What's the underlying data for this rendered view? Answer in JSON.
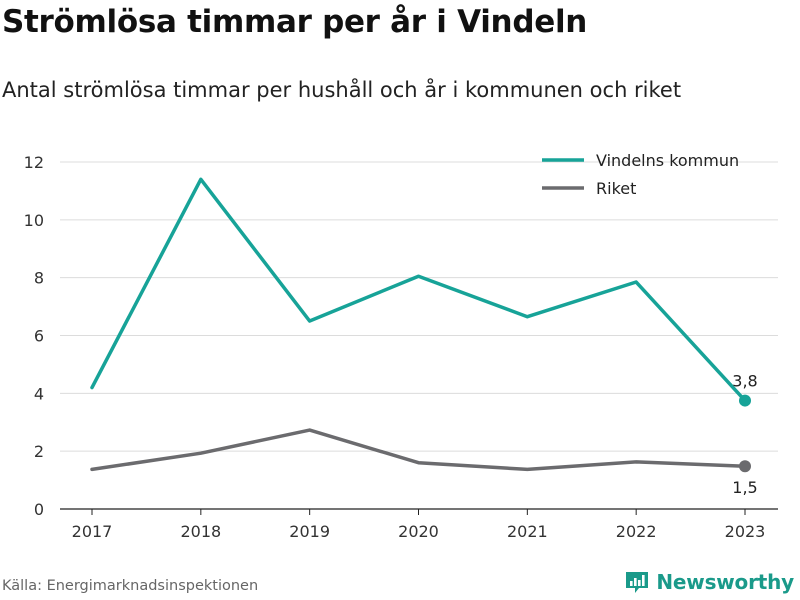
{
  "title": "Strömlösa timmar per år i Vindeln",
  "subtitle": "Antal strömlösa timmar per hushåll och år i kommunen och riket",
  "source": "Källa: Energimarknadsinspektionen",
  "brand": {
    "name": "Newsworthy",
    "icon": "newsworthy-logo-icon"
  },
  "colors": {
    "teal": "#17a398",
    "gray": "#6b6b6e",
    "grid": "#dcdcdc"
  },
  "chart_data": {
    "type": "line",
    "categories": [
      "2017",
      "2018",
      "2019",
      "2020",
      "2021",
      "2022",
      "2023"
    ],
    "ylim": [
      0,
      12
    ],
    "yticks": [
      "0",
      "2",
      "4",
      "6",
      "8",
      "10",
      "12"
    ],
    "grid": true,
    "legend_position": "top-right",
    "series": [
      {
        "name": "Vindelns kommun",
        "color": "#17a398",
        "values": [
          4.2,
          11.4,
          6.5,
          8.05,
          6.65,
          7.85,
          3.75
        ],
        "end_label": "3,8"
      },
      {
        "name": "Riket",
        "color": "#6b6b6e",
        "values": [
          1.37,
          1.93,
          2.73,
          1.6,
          1.37,
          1.63,
          1.48
        ],
        "end_label": "1,5"
      }
    ]
  }
}
